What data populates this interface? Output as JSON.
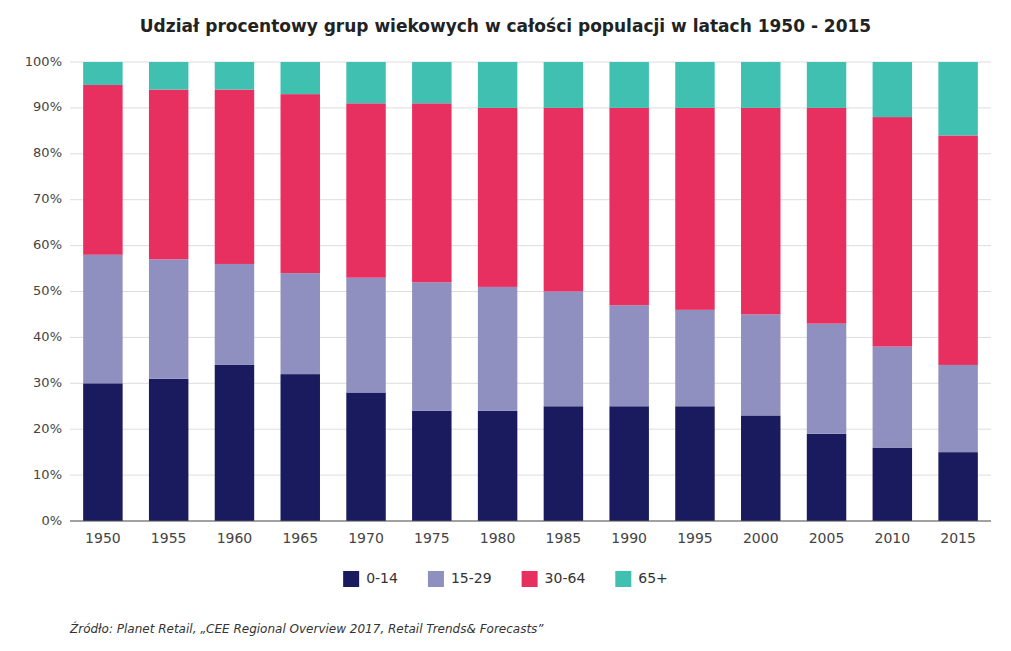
{
  "chart_data": {
    "type": "bar",
    "title": "Udział procentowy grup wiekowych w całości populacji w latach 1950 - 2015",
    "categories": [
      "1950",
      "1955",
      "1960",
      "1965",
      "1970",
      "1975",
      "1980",
      "1985",
      "1990",
      "1995",
      "2000",
      "2005",
      "2010",
      "2015"
    ],
    "series": [
      {
        "name": "0-14",
        "color": "#1a1a5e",
        "values": [
          30,
          31,
          34,
          32,
          28,
          24,
          24,
          25,
          25,
          25,
          23,
          19,
          16,
          15
        ]
      },
      {
        "name": "15-29",
        "color": "#9090c0",
        "values": [
          28,
          26,
          22,
          22,
          25,
          28,
          27,
          25,
          22,
          21,
          22,
          24,
          22,
          19
        ]
      },
      {
        "name": "30-64",
        "color": "#e83060",
        "values": [
          37,
          37,
          38,
          39,
          38,
          39,
          39,
          40,
          43,
          44,
          45,
          47,
          50,
          50
        ]
      },
      {
        "name": "65+",
        "color": "#40c0b0",
        "values": [
          5,
          6,
          6,
          7,
          9,
          9,
          10,
          10,
          10,
          10,
          10,
          10,
          12,
          16
        ]
      }
    ],
    "stacked": true,
    "ylim": [
      0,
      100
    ],
    "yticks": [
      {
        "value": 0,
        "label": "0%"
      },
      {
        "value": 10,
        "label": "10%"
      },
      {
        "value": 20,
        "label": "20%"
      },
      {
        "value": 30,
        "label": "30%"
      },
      {
        "value": 40,
        "label": "40%"
      },
      {
        "value": 50,
        "label": "50%"
      },
      {
        "value": 60,
        "label": "60%"
      },
      {
        "value": 70,
        "label": "70%"
      },
      {
        "value": 80,
        "label": "80%"
      },
      {
        "value": 90,
        "label": "90%"
      },
      {
        "value": 100,
        "label": "100%"
      }
    ],
    "grid": true,
    "legend": "bottom",
    "annotations": [
      "Źródło: Planet Retail, „CEE Regional Overview 2017, Retail Trends& Forecasts”"
    ]
  }
}
